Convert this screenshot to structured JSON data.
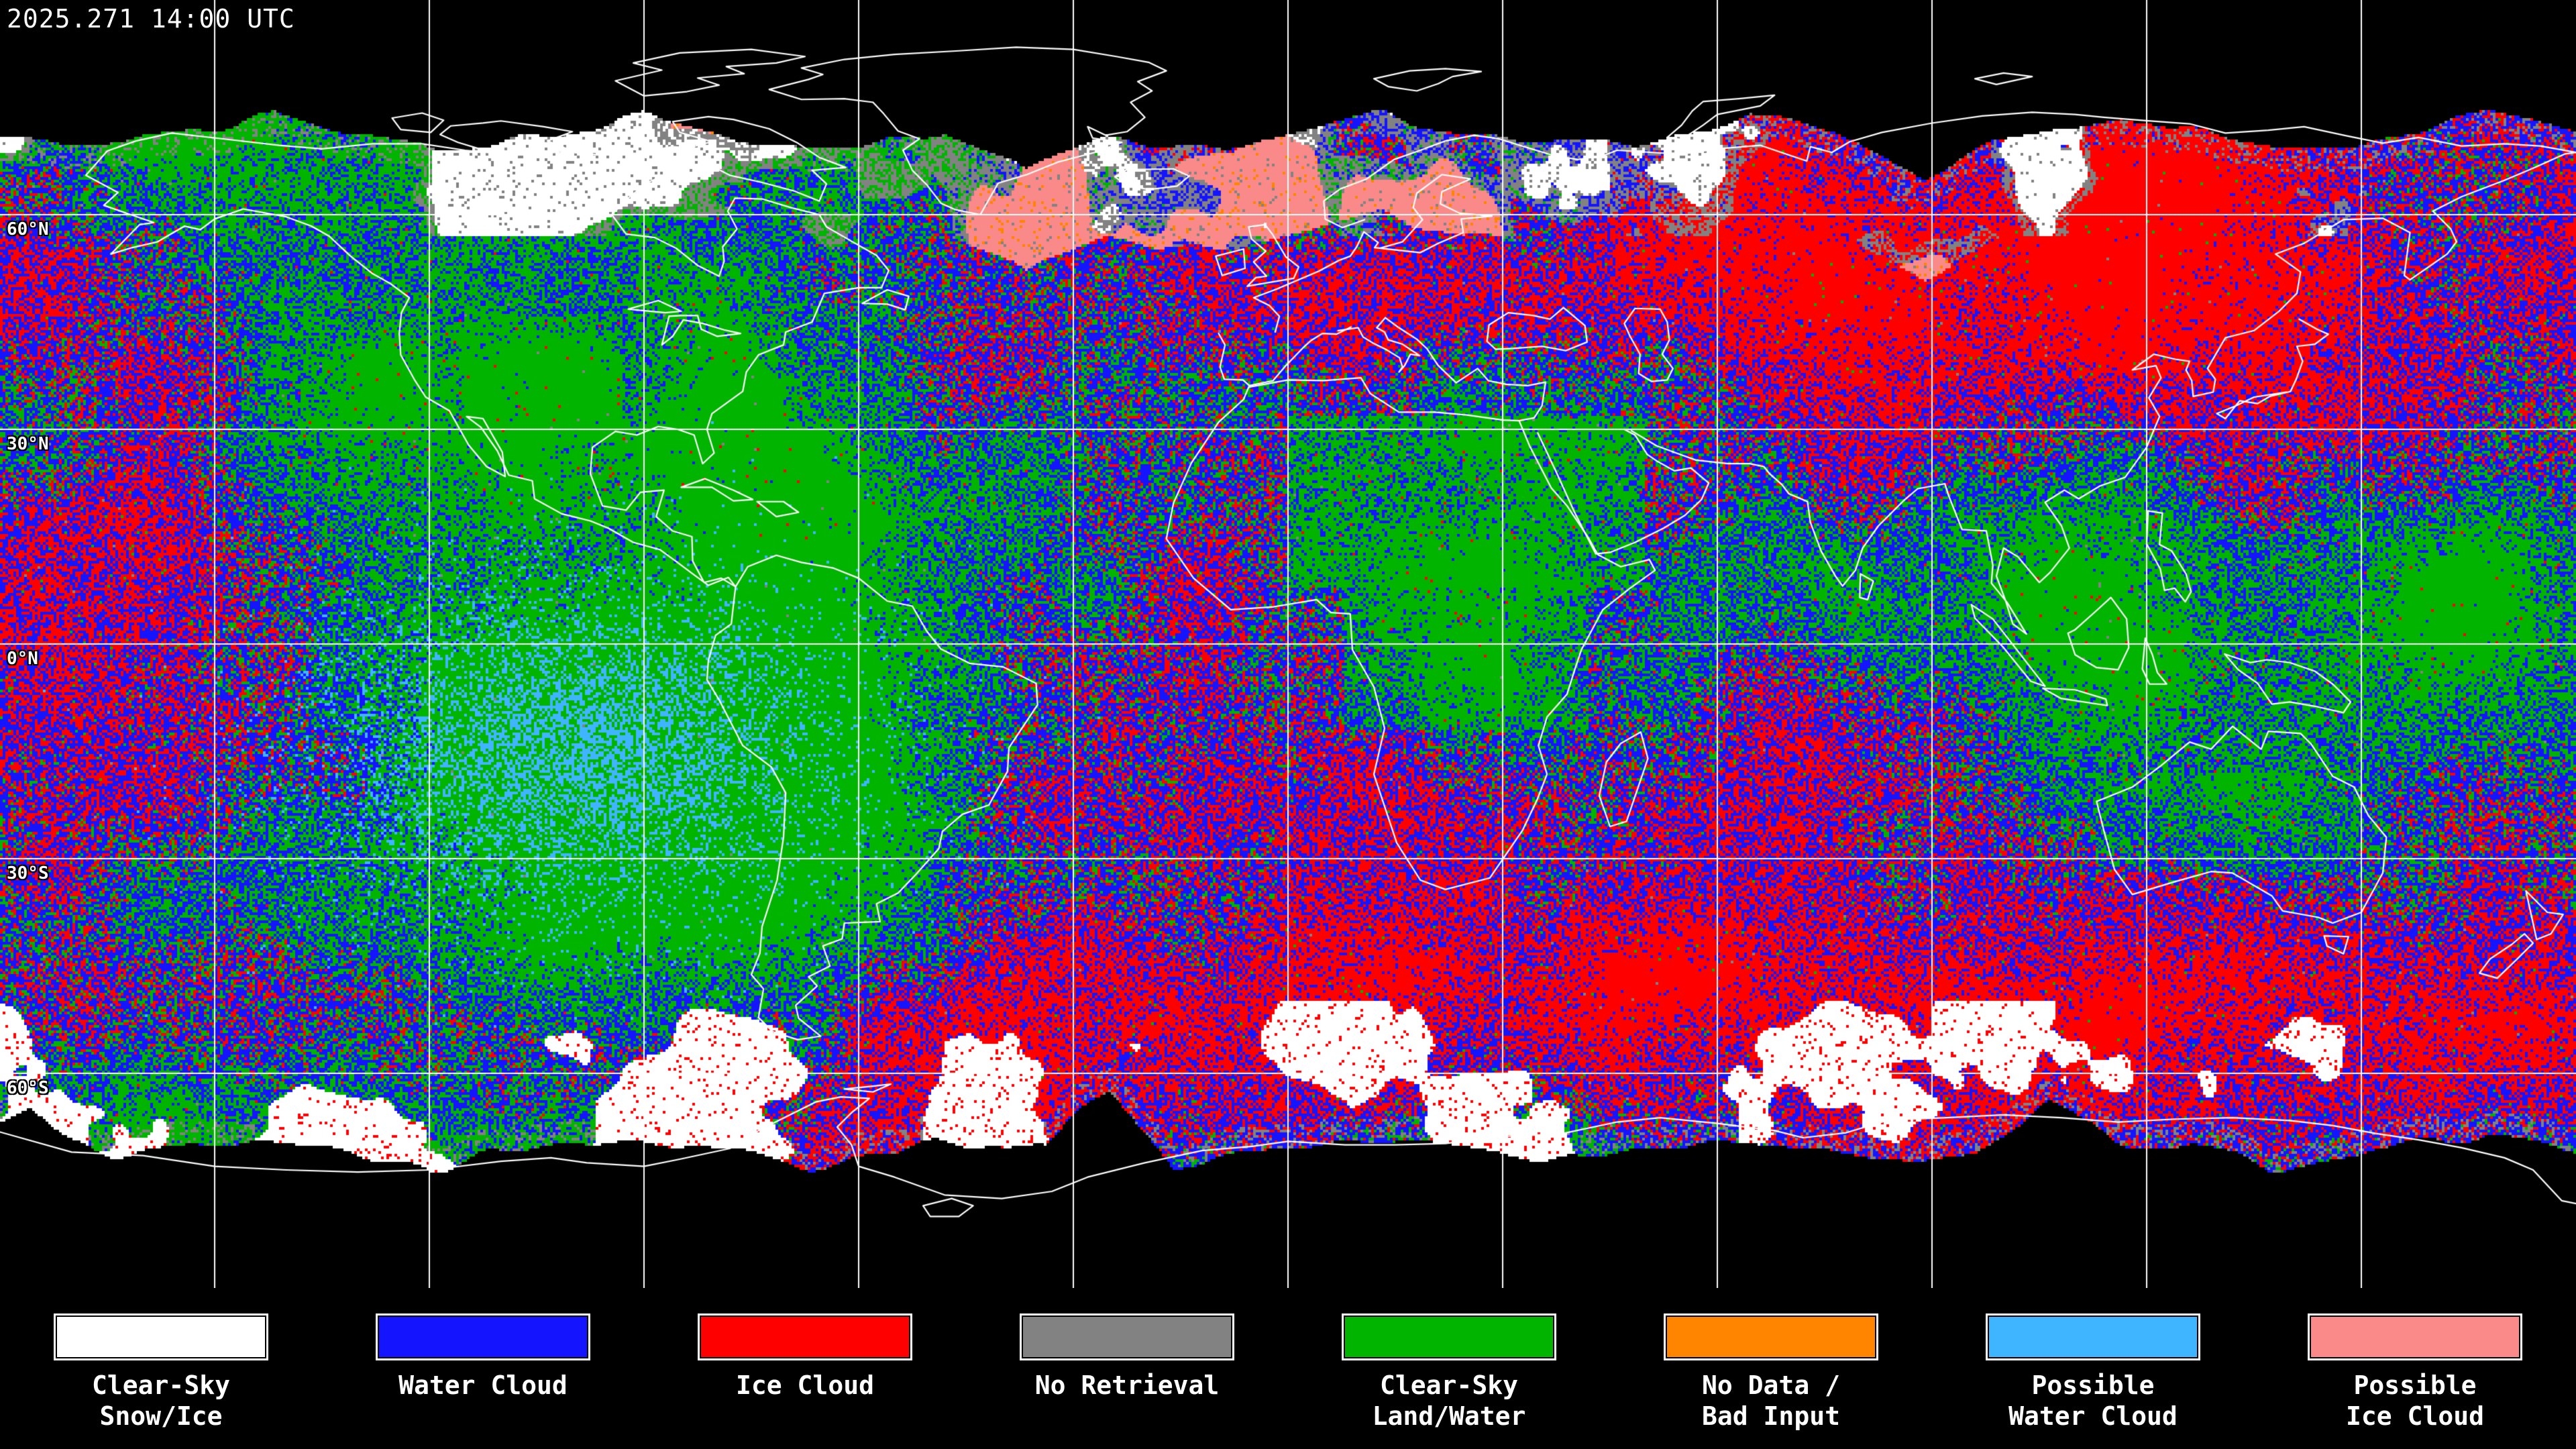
{
  "header": {
    "timestamp": "2025.271 14:00 UTC"
  },
  "map": {
    "projection": "equirectangular",
    "grid": {
      "lon_step_deg": 30,
      "lat_step_deg": 30,
      "line_color": "#FFFFFF"
    },
    "coastline_color": "#FFFFFF",
    "background_color": "#000000",
    "latitude_labels": [
      {
        "text": "60°N",
        "lat": 60
      },
      {
        "text": "30°N",
        "lat": 30
      },
      {
        "text": "0°N",
        "lat": 0
      },
      {
        "text": "30°S",
        "lat": -30
      },
      {
        "text": "60°S",
        "lat": -60
      }
    ]
  },
  "legend": {
    "items": [
      {
        "key": "clear_snow_ice",
        "label": "Clear-Sky\nSnow/Ice",
        "color": "#FFFFFF"
      },
      {
        "key": "water_cloud",
        "label": "Water Cloud",
        "color": "#1414FF"
      },
      {
        "key": "ice_cloud",
        "label": "Ice Cloud",
        "color": "#FF0000"
      },
      {
        "key": "no_retrieval",
        "label": "No Retrieval",
        "color": "#828282"
      },
      {
        "key": "clear_land_water",
        "label": "Clear-Sky\nLand/Water",
        "color": "#00B400"
      },
      {
        "key": "no_data",
        "label": "No Data /\nBad Input",
        "color": "#FF8400"
      },
      {
        "key": "possible_water",
        "label": "Possible\nWater Cloud",
        "color": "#3FB5FF"
      },
      {
        "key": "possible_ice",
        "label": "Possible\nIce Cloud",
        "color": "#FA8A8A"
      }
    ]
  }
}
